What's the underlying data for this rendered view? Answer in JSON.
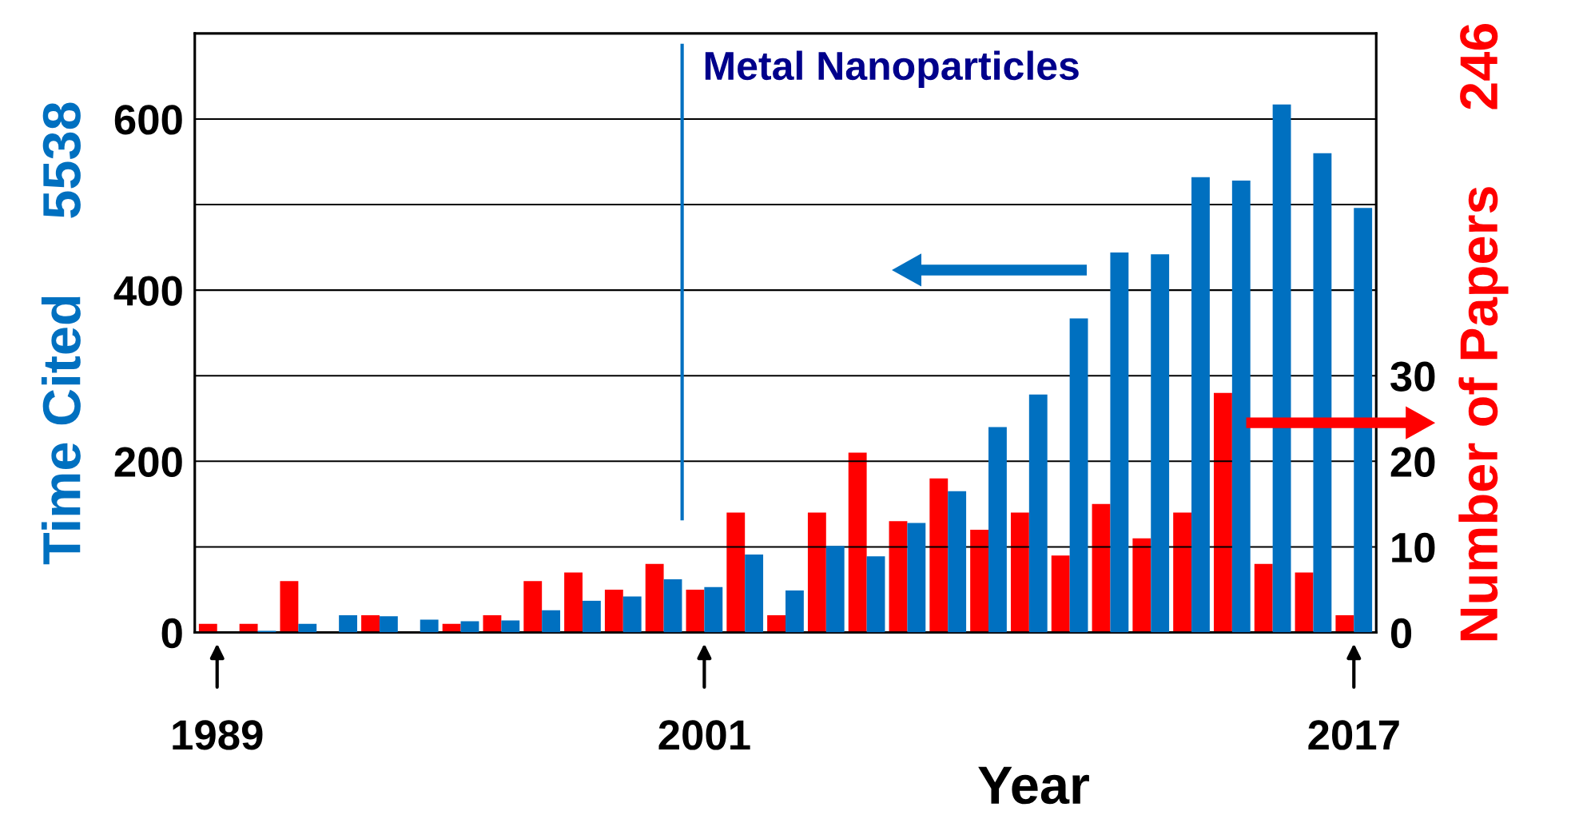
{
  "chart_data": {
    "type": "bar",
    "title": "Metal Nanoparticles",
    "xlabel": "Year",
    "ylabel": "Time Cited     5538",
    "y2label": "Number of Papers     246",
    "categories": [
      "1989",
      null,
      null,
      null,
      null,
      null,
      null,
      null,
      null,
      null,
      null,
      null,
      "2001",
      null,
      null,
      null,
      null,
      null,
      null,
      null,
      null,
      null,
      null,
      null,
      null,
      null,
      null,
      null,
      "2017"
    ],
    "series": [
      {
        "color": "#ff0000",
        "axis": "y2",
        "values": [
          1,
          1,
          6,
          0,
          2,
          0,
          1,
          2,
          6,
          7,
          5,
          8,
          5,
          14,
          2,
          14,
          21,
          13,
          18,
          12,
          14,
          9,
          15,
          11,
          14,
          28,
          8,
          7,
          2
        ]
      },
      {
        "color": "#0070c0",
        "axis": "y",
        "values": [
          0,
          2,
          10,
          20,
          19,
          15,
          13,
          14,
          26,
          37,
          42,
          62,
          53,
          91,
          49,
          101,
          89,
          128,
          165,
          240,
          278,
          367,
          444,
          442,
          532,
          528,
          617,
          560,
          496
        ]
      }
    ],
    "ylim": [
      0,
      700
    ],
    "yticks": [
      0,
      {
        "value": 100,
        "label": null
      },
      200,
      {
        "value": 300,
        "label": null
      },
      400,
      {
        "value": 500,
        "label": null
      },
      600
    ],
    "y2lim": [
      0,
      70
    ],
    "y2ticks": [
      0,
      10,
      20,
      30
    ],
    "grid": "y",
    "legend": false
  }
}
